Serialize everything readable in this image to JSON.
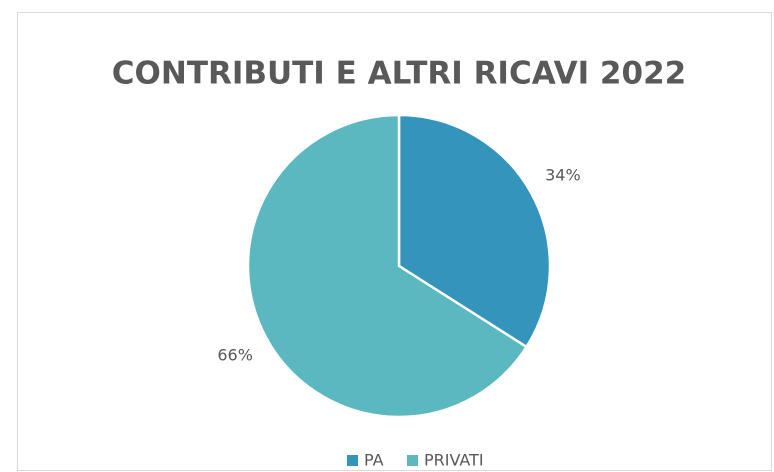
{
  "chart_data": {
    "type": "pie",
    "title": "CONTRIBUTI E ALTRI RICAVI 2022",
    "categories": [
      "PA",
      "PRIVATI"
    ],
    "values": [
      34,
      66
    ],
    "value_labels": [
      "34%",
      "66%"
    ],
    "colors": [
      "#3594bb",
      "#5bb7c0"
    ],
    "legend": "bottom"
  }
}
